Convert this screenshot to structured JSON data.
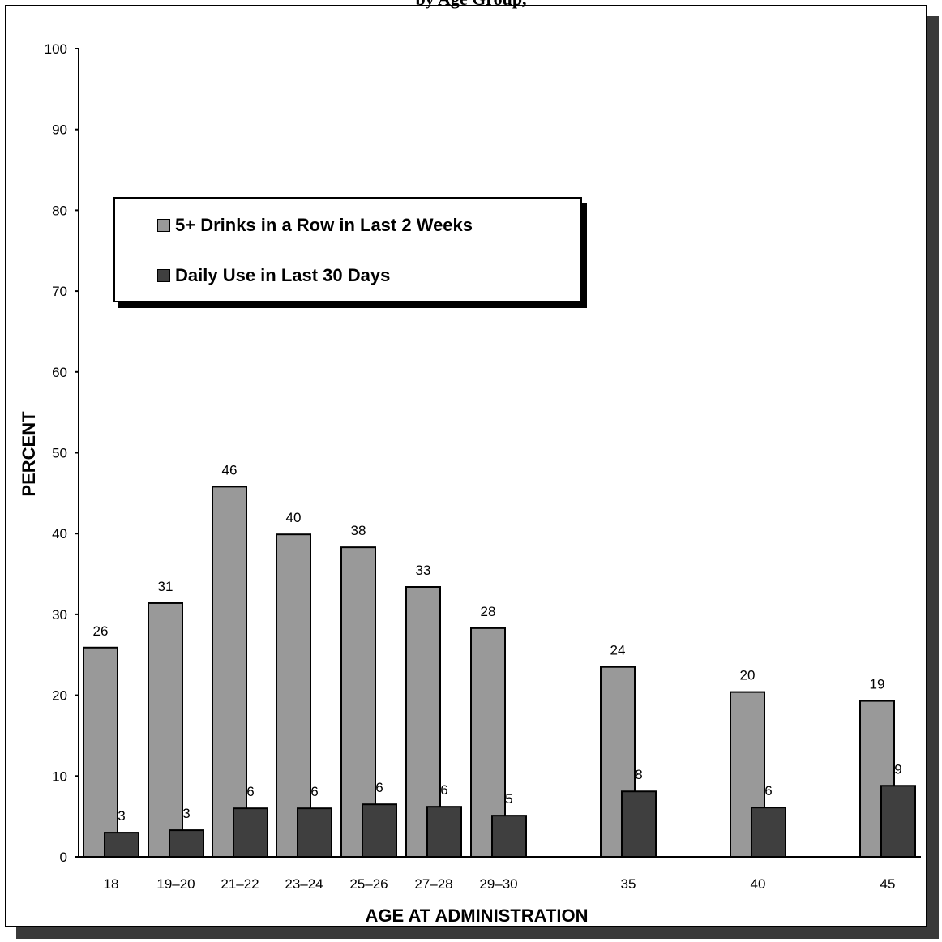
{
  "header": {
    "title_fragment": "by Age Group,"
  },
  "legend": {
    "items": [
      {
        "label": "5+ Drinks in a Row in Last 2 Weeks",
        "color": "#999999"
      },
      {
        "label": "Daily Use in Last 30 Days",
        "color": "#3f3f3f"
      }
    ]
  },
  "chart_data": {
    "type": "bar",
    "ylabel": "PERCENT",
    "xlabel": "AGE AT ADMINISTRATION",
    "ylim": [
      0,
      100
    ],
    "yticks": [
      0,
      10,
      20,
      30,
      40,
      50,
      60,
      70,
      80,
      90,
      100
    ],
    "grid": false,
    "legend_position": "upper-left",
    "categories": [
      "18",
      "19–20",
      "21–22",
      "23–24",
      "25–26",
      "27–28",
      "29–30",
      "35",
      "40",
      "45"
    ],
    "series": [
      {
        "name": "5+ Drinks in a Row in Last 2 Weeks",
        "color": "#999999",
        "values": [
          25.9,
          31.4,
          45.8,
          39.9,
          38.3,
          33.4,
          28.3,
          23.5,
          20.4,
          19.3
        ],
        "labels": [
          "26",
          "31",
          "46",
          "40",
          "38",
          "33",
          "28",
          "24",
          "20",
          "19"
        ]
      },
      {
        "name": "Daily Use in Last 30 Days",
        "color": "#3f3f3f",
        "values": [
          3.0,
          3.3,
          6.0,
          6.0,
          6.5,
          6.2,
          5.1,
          8.1,
          6.1,
          8.8
        ],
        "labels": [
          "3",
          "3",
          "6",
          "6",
          "6",
          "6",
          "5",
          "8",
          "6",
          "9"
        ]
      }
    ]
  }
}
